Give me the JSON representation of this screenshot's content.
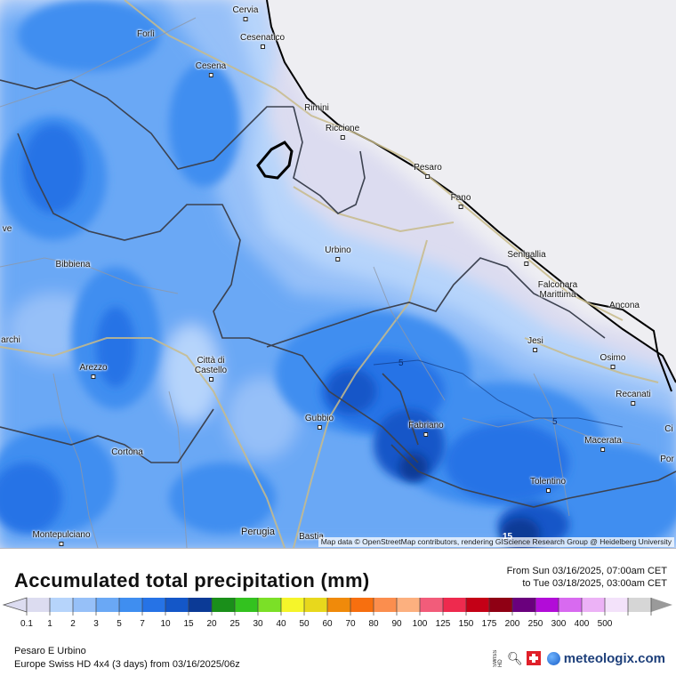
{
  "map": {
    "attribution": "Map data © OpenStreetMap contributors, rendering GIScience Research Group @ Heidelberg University",
    "cities": [
      {
        "name": "Cervia",
        "id": "cervia"
      },
      {
        "name": "Forlì",
        "id": "forli"
      },
      {
        "name": "Cesenatico",
        "id": "cesenatico"
      },
      {
        "name": "Cesena",
        "id": "cesena"
      },
      {
        "name": "Rimini",
        "id": "rimini"
      },
      {
        "name": "Riccione",
        "id": "riccione"
      },
      {
        "name": "Pesaro",
        "id": "pesaro"
      },
      {
        "name": "Fano",
        "id": "fano"
      },
      {
        "name": "Urbino",
        "id": "urbino"
      },
      {
        "name": "Senigallia",
        "id": "senigallia"
      },
      {
        "name": "Falconara Marittima",
        "id": "falconara"
      },
      {
        "name": "Ancona",
        "id": "ancona"
      },
      {
        "name": "Bibbiena",
        "id": "bibbiena"
      },
      {
        "name": "Jesi",
        "id": "jesi"
      },
      {
        "name": "Osimo",
        "id": "osimo"
      },
      {
        "name": "Città di Castello",
        "id": "citta-di-castello"
      },
      {
        "name": "Arezzo",
        "id": "arezzo"
      },
      {
        "name": "Recanati",
        "id": "recanati"
      },
      {
        "name": "Gubbio",
        "id": "gubbio"
      },
      {
        "name": "Fabriano",
        "id": "fabriano"
      },
      {
        "name": "Macerata",
        "id": "macerata"
      },
      {
        "name": "Cortona",
        "id": "cortona"
      },
      {
        "name": "Tolentino",
        "id": "tolentino"
      },
      {
        "name": "Montepulciano",
        "id": "montepulciano"
      },
      {
        "name": "Perugia",
        "id": "perugia"
      },
      {
        "name": "Bastia",
        "id": "bastia"
      },
      {
        "name": "ve",
        "id": "edge-ve"
      },
      {
        "name": "archi",
        "id": "edge-archi"
      },
      {
        "name": "Ci",
        "id": "edge-ci"
      },
      {
        "name": "Por",
        "id": "edge-por"
      }
    ],
    "contour_labels": [
      "5",
      "5",
      "15"
    ]
  },
  "legend": {
    "title": "Accumulated total precipitation (mm)",
    "from_line": "From Sun 03/16/2025, 07:00am CET",
    "to_line": "to Tue 03/18/2025, 03:00am CET",
    "ticks": [
      "0.1",
      "1",
      "2",
      "3",
      "5",
      "7",
      "10",
      "15",
      "20",
      "25",
      "30",
      "40",
      "50",
      "60",
      "70",
      "80",
      "90",
      "100",
      "125",
      "150",
      "175",
      "200",
      "250",
      "300",
      "400",
      "500"
    ],
    "colors": [
      "#dcdcf0",
      "#b6d4fb",
      "#96c0f8",
      "#6aa8f5",
      "#3f8ef0",
      "#2673e6",
      "#1457c8",
      "#0b3a96",
      "#1a8f1a",
      "#33c21f",
      "#7be027",
      "#f5f52a",
      "#e8d81c",
      "#f08a0a",
      "#f76f0f",
      "#fb8e4e",
      "#fcb07f",
      "#f25c7a",
      "#ee2a4e",
      "#c40016",
      "#8f0014",
      "#6a007d",
      "#b20cd8",
      "#d86af0",
      "#ecb2f6",
      "#f3e2fa",
      "#d6d6d6"
    ]
  },
  "footer": {
    "region": "Pesaro E Urbino",
    "model_line": "Europe Swiss HD 4x4  (3 days)  from  03/16/2025/06z"
  },
  "logo": {
    "swiss_hd": "SWISS HD",
    "brand": "meteologix.com"
  }
}
